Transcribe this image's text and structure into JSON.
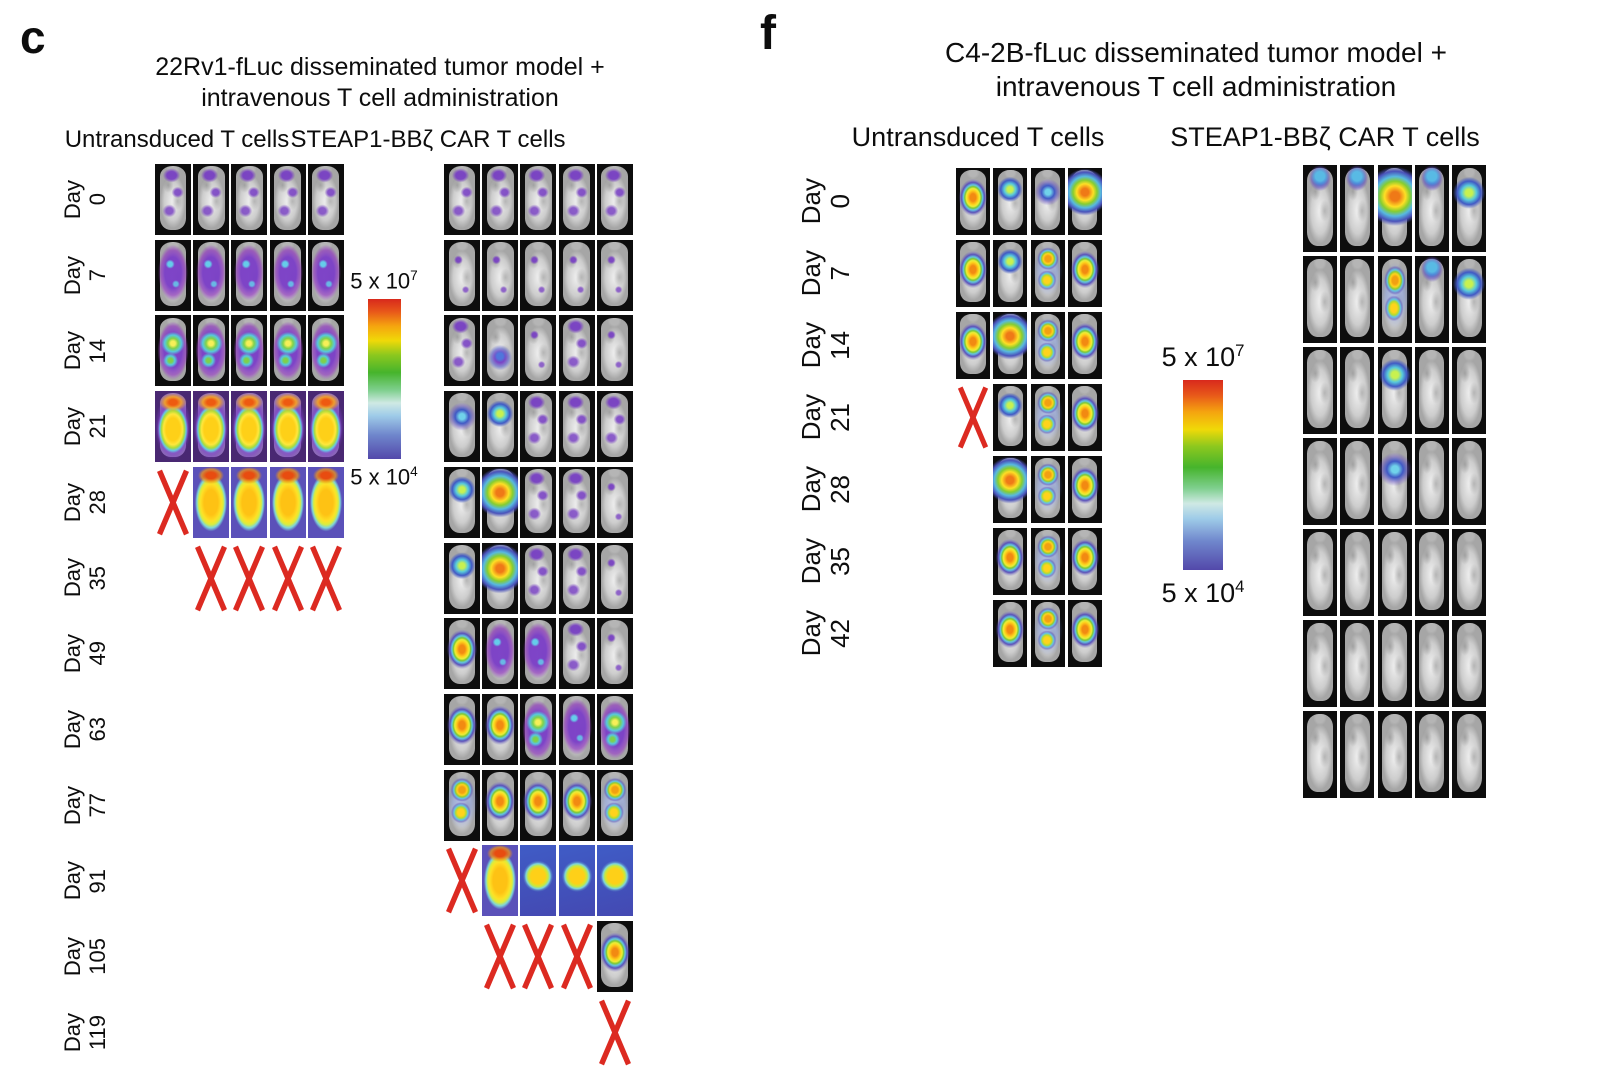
{
  "figure": {
    "x_marker_color": "#dc2a21",
    "colorbar": {
      "max": "5 x 10",
      "max_exp": "7",
      "min": "5 x 10",
      "min_exp": "4",
      "stops": [
        "#d8291c 0%",
        "#e8581a 8%",
        "#f5a50f 17%",
        "#f0d908 26%",
        "#8cc81e 35%",
        "#46b42c 46%",
        "#7fcf8e 57%",
        "#cfe9e4 65%",
        "#9ecbe8 73%",
        "#6f86cc 85%",
        "#5348aa 100%"
      ]
    },
    "panels": [
      {
        "letter": "c",
        "title1": "22Rv1-fLuc disseminated tumor model +",
        "title2": "intravenous T cell administration",
        "day_word": "Day",
        "groups": [
          {
            "header": "Untransduced T cells"
          },
          {
            "header": "STEAP1-BBζ CAR T cells"
          }
        ],
        "rows": [
          {
            "day": "0",
            "g1": [
              "faint",
              "faint",
              "faint",
              "faint",
              "faint"
            ],
            "g2": [
              "faint",
              "faint",
              "faint",
              "faint",
              "faint"
            ]
          },
          {
            "day": "7",
            "g1": [
              "purple",
              "purple",
              "purple",
              "purple",
              "purple"
            ],
            "g2": [
              "specks",
              "specks",
              "specks",
              "specks",
              "specks"
            ]
          },
          {
            "day": "14",
            "g1": [
              "purplegreen",
              "purplegreen",
              "purplegreen",
              "purplegreen",
              "purplegreen"
            ],
            "g2": [
              "faint",
              "patchpurple",
              "specks",
              "faint",
              "specks"
            ]
          },
          {
            "day": "21",
            "g1": [
              "hotfull",
              "hotfull",
              "hotfull",
              "hotfull",
              "hotfull"
            ],
            "g2": [
              "spotblue",
              "spotgreen",
              "faint",
              "faint",
              "faint"
            ]
          },
          {
            "day": "28",
            "g1": [
              "x",
              "full",
              "full",
              "full",
              "full"
            ],
            "g2": [
              "spotgreen",
              "spothot",
              "faint",
              "faint",
              "specks"
            ]
          },
          {
            "day": "35",
            "g1": [
              "gap",
              "x",
              "x",
              "x",
              "x"
            ],
            "g2": [
              "spotgreen",
              "spothot",
              "faint",
              "faint",
              "specks"
            ]
          },
          {
            "day": "49",
            "g1": null,
            "g2": [
              "hot",
              "purple",
              "purple",
              "faint",
              "specks"
            ]
          },
          {
            "day": "63",
            "g1": null,
            "g2": [
              "hot",
              "hot",
              "purplegreen",
              "purple",
              "purplegreen"
            ]
          },
          {
            "day": "77",
            "g1": null,
            "g2": [
              "hotdouble",
              "hot",
              "hot",
              "hot",
              "hotdouble"
            ]
          },
          {
            "day": "91",
            "g1": null,
            "g2": [
              "x",
              "full",
              "hotblue",
              "hotblue",
              "hotblue"
            ]
          },
          {
            "day": "105",
            "g1": null,
            "g2": [
              "gap",
              "x",
              "x",
              "x",
              "hot"
            ]
          },
          {
            "day": "119",
            "g1": null,
            "g2": [
              "gap",
              "gap",
              "gap",
              "gap",
              "x"
            ]
          }
        ]
      },
      {
        "letter": "f",
        "title1": "C4-2B-fLuc disseminated tumor model +",
        "title2": "intravenous T cell administration",
        "day_word": "Day",
        "groups": [
          {
            "header": "Untransduced T cells"
          },
          {
            "header": "STEAP1-BBζ CAR T cells"
          }
        ],
        "rows": [
          {
            "day": "0",
            "g1": [
              "hot",
              "spotgreen",
              "spotblue",
              "spothot"
            ],
            "g2": [
              "patchblue",
              "patchblue",
              "spothot",
              "patchblue",
              "spotgreen"
            ]
          },
          {
            "day": "7",
            "g1": [
              "hot",
              "spotgreen",
              "hotdouble",
              "hot"
            ],
            "g2": [
              "none",
              "none",
              "hotdouble",
              "patchblue",
              "spotgreen"
            ]
          },
          {
            "day": "14",
            "g1": [
              "hot",
              "spothot",
              "hotdouble",
              "hot"
            ],
            "g2": [
              "none",
              "none",
              "spotgreen",
              "none",
              "none"
            ]
          },
          {
            "day": "21",
            "g1": [
              "x",
              "spotgreen",
              "hotdouble",
              "hot"
            ],
            "g2": [
              "none",
              "none",
              "spotblue",
              "none",
              "none"
            ]
          },
          {
            "day": "28",
            "g1": [
              "gap",
              "spothot",
              "hotdouble",
              "hot"
            ],
            "g2": [
              "none",
              "none",
              "none",
              "none",
              "none"
            ]
          },
          {
            "day": "35",
            "g1": [
              "gap",
              "hot",
              "hotdouble",
              "hot"
            ],
            "g2": [
              "none",
              "none",
              "none",
              "none",
              "none"
            ]
          },
          {
            "day": "42",
            "g1": [
              "gap",
              "hot",
              "hotdouble",
              "hot"
            ],
            "g2": [
              "none",
              "none",
              "none",
              "none",
              "none"
            ]
          }
        ]
      }
    ]
  }
}
